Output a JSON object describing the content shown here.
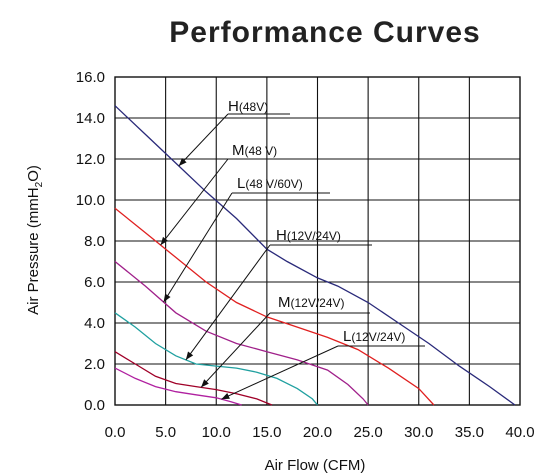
{
  "chart_data": {
    "type": "line",
    "title": "Performance Curves",
    "xlabel": "Air Flow (CFM)",
    "ylabel": "Air Pressure (mmH2O)",
    "ylabel_parts": {
      "before": "Air Pressure (mmH",
      "sub": "2",
      "after": "O)"
    },
    "xlim": [
      0,
      40
    ],
    "ylim": [
      0,
      16
    ],
    "x_ticks": [
      "0.0",
      "5.0",
      "10.0",
      "15.0",
      "20.0",
      "25.0",
      "30.0",
      "35.0",
      "40.0"
    ],
    "y_ticks": [
      "0.0",
      "2.0",
      "4.0",
      "6.0",
      "8.0",
      "10.0",
      "12.0",
      "14.0",
      "16.0"
    ],
    "grid": true,
    "series": [
      {
        "id": "h48",
        "color": "#2a2a7a",
        "label_main": "H",
        "label_paren": "(48V)",
        "points": [
          [
            0,
            14.6
          ],
          [
            3,
            13.2
          ],
          [
            6,
            11.8
          ],
          [
            9,
            10.4
          ],
          [
            12,
            9.1
          ],
          [
            15,
            7.6
          ],
          [
            17,
            7.0
          ],
          [
            20,
            6.2
          ],
          [
            22,
            5.8
          ],
          [
            25,
            5.0
          ],
          [
            28,
            4.0
          ],
          [
            31,
            3.0
          ],
          [
            34,
            1.9
          ],
          [
            37,
            0.9
          ],
          [
            39.5,
            0
          ]
        ]
      },
      {
        "id": "m48",
        "color": "#e02020",
        "label_main": "M",
        "label_paren": "(48 V)",
        "points": [
          [
            0,
            9.6
          ],
          [
            3,
            8.4
          ],
          [
            6,
            7.2
          ],
          [
            9,
            6.0
          ],
          [
            12,
            5.0
          ],
          [
            15,
            4.3
          ],
          [
            18,
            3.8
          ],
          [
            21,
            3.3
          ],
          [
            24,
            2.7
          ],
          [
            27,
            1.8
          ],
          [
            30,
            0.8
          ],
          [
            31.5,
            0
          ]
        ]
      },
      {
        "id": "l48",
        "color": "#a0208a",
        "label_main": "L",
        "label_paren": "(48 V/60V)",
        "points": [
          [
            0,
            7.0
          ],
          [
            3,
            5.8
          ],
          [
            6,
            4.5
          ],
          [
            9,
            3.6
          ],
          [
            12,
            3.0
          ],
          [
            15,
            2.6
          ],
          [
            18,
            2.2
          ],
          [
            21,
            1.7
          ],
          [
            23,
            1.0
          ],
          [
            24.5,
            0.3
          ],
          [
            25,
            0
          ]
        ]
      },
      {
        "id": "h1224",
        "color": "#20a0a0",
        "label_main": "H",
        "label_paren": "(12V/24V)",
        "points": [
          [
            0,
            4.5
          ],
          [
            2,
            3.8
          ],
          [
            4,
            3.0
          ],
          [
            6,
            2.4
          ],
          [
            8,
            2.0
          ],
          [
            10,
            1.9
          ],
          [
            12,
            1.8
          ],
          [
            14,
            1.6
          ],
          [
            16,
            1.3
          ],
          [
            18,
            0.8
          ],
          [
            19.5,
            0.3
          ],
          [
            20,
            0
          ]
        ]
      },
      {
        "id": "m1224",
        "color": "#a00028",
        "label_main": "M",
        "label_paren": "(12V/24V)",
        "points": [
          [
            0,
            2.6
          ],
          [
            2,
            2.0
          ],
          [
            4,
            1.4
          ],
          [
            6,
            1.05
          ],
          [
            8,
            0.9
          ],
          [
            10,
            0.75
          ],
          [
            12,
            0.55
          ],
          [
            14,
            0.3
          ],
          [
            15.5,
            0
          ]
        ]
      },
      {
        "id": "l1224",
        "color": "#b020a0",
        "label_main": "L",
        "label_paren": "(12V/24V)",
        "points": [
          [
            0,
            1.8
          ],
          [
            2,
            1.3
          ],
          [
            4,
            0.9
          ],
          [
            6,
            0.65
          ],
          [
            8,
            0.5
          ],
          [
            10,
            0.35
          ],
          [
            11.5,
            0.15
          ],
          [
            12.5,
            0
          ]
        ]
      }
    ]
  }
}
